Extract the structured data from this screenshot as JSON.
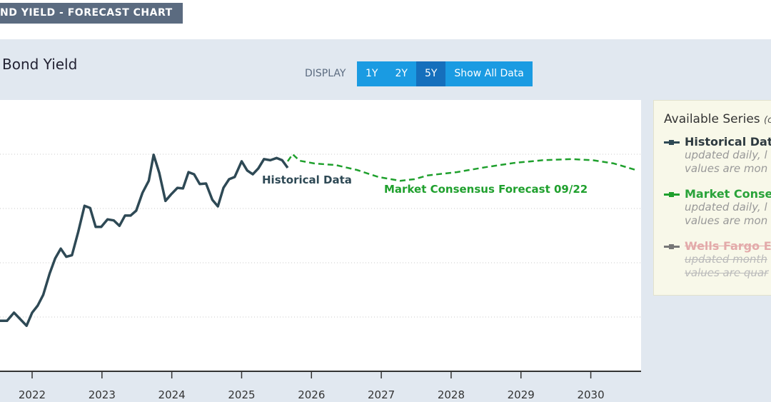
{
  "header": {
    "banner": "ND YIELD - FORECAST CHART"
  },
  "toolbar": {
    "label": "DISPLAY",
    "buttons": [
      "1Y",
      "2Y",
      "5Y",
      "Show All Data"
    ],
    "active": 2
  },
  "chart_data": {
    "type": "line",
    "title": "Bond Yield",
    "xlim": [
      2021.54,
      2030.72
    ],
    "xticks": [
      2022,
      2023,
      2024,
      2025,
      2026,
      2027,
      2028,
      2029,
      2030
    ],
    "ylim": [
      1,
      6
    ],
    "yticks": [
      2,
      3,
      4,
      5
    ],
    "grid": true,
    "series": [
      {
        "name": "Historical Data",
        "color": "#2e4955",
        "dashed": false,
        "x": [
          2021.54,
          2021.64,
          2021.74,
          2021.83,
          2021.92,
          2022.0,
          2022.08,
          2022.16,
          2022.25,
          2022.33,
          2022.41,
          2022.49,
          2022.57,
          2022.66,
          2022.75,
          2022.83,
          2022.91,
          2022.99,
          2023.08,
          2023.17,
          2023.25,
          2023.33,
          2023.41,
          2023.49,
          2023.58,
          2023.67,
          2023.74,
          2023.82,
          2023.91,
          2023.99,
          2024.08,
          2024.16,
          2024.24,
          2024.32,
          2024.4,
          2024.49,
          2024.58,
          2024.66,
          2024.74,
          2024.82,
          2024.9,
          2025.0,
          2025.08,
          2025.16,
          2025.24,
          2025.32,
          2025.41,
          2025.5,
          2025.58,
          2025.66
        ],
        "values": [
          1.93,
          1.93,
          2.08,
          1.96,
          1.84,
          2.08,
          2.21,
          2.41,
          2.8,
          3.08,
          3.26,
          3.11,
          3.14,
          3.57,
          4.05,
          4.01,
          3.66,
          3.66,
          3.8,
          3.78,
          3.68,
          3.87,
          3.87,
          3.96,
          4.29,
          4.51,
          4.99,
          4.66,
          4.14,
          4.26,
          4.38,
          4.37,
          4.67,
          4.63,
          4.45,
          4.46,
          4.16,
          4.04,
          4.38,
          4.54,
          4.58,
          4.87,
          4.7,
          4.63,
          4.74,
          4.91,
          4.89,
          4.93,
          4.89,
          4.75
        ]
      },
      {
        "name": "Market Consensus Forecast 09/22",
        "color": "#1fa02d",
        "dashed": true,
        "x": [
          2025.66,
          2025.73,
          2025.83,
          2026.04,
          2026.35,
          2026.65,
          2026.96,
          2027.27,
          2027.47,
          2027.67,
          2028.08,
          2028.49,
          2028.9,
          2029.31,
          2029.72,
          2030.03,
          2030.33,
          2030.67
        ],
        "values": [
          4.87,
          5.0,
          4.88,
          4.83,
          4.8,
          4.71,
          4.58,
          4.51,
          4.54,
          4.61,
          4.67,
          4.76,
          4.84,
          4.89,
          4.91,
          4.89,
          4.83,
          4.7
        ]
      }
    ]
  },
  "legend": {
    "title": "Available Series",
    "hint": "(c",
    "items": [
      {
        "name": "Historical Data",
        "lines": [
          "updated daily, l",
          "values are mon"
        ],
        "color": "#2e4955",
        "text_color": "#2e3a40",
        "disabled": false
      },
      {
        "name": "Market Consen",
        "lines": [
          "updated daily, l",
          "values are mon"
        ],
        "color": "#1fa02d",
        "text_color": "#2aa33a",
        "disabled": false
      },
      {
        "name": "Wells Fargo Ec",
        "lines": [
          "updated month",
          "values are quar"
        ],
        "color": "#777777",
        "text_color": "#e3aaaa",
        "disabled": true
      }
    ]
  }
}
